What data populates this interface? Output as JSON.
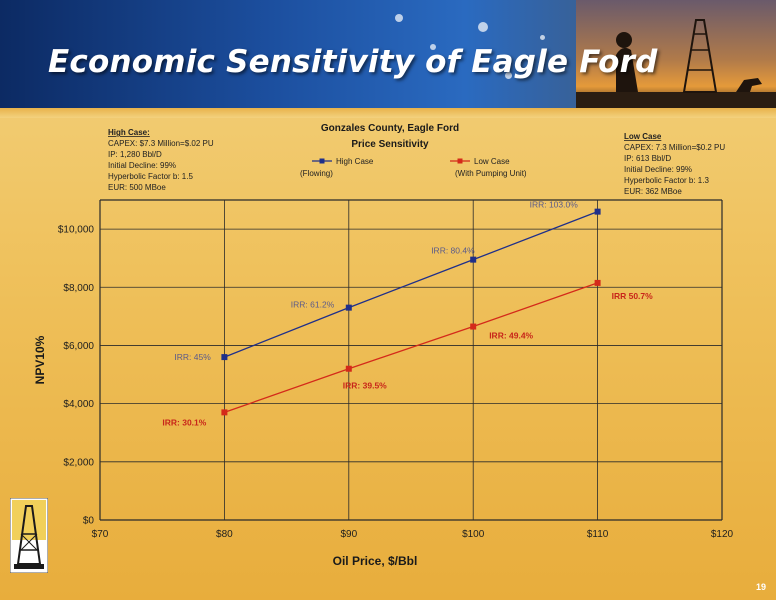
{
  "slide": {
    "title": "Economic Sensitivity of Eagle Ford",
    "page_number": "19"
  },
  "colors": {
    "high_case": "#1f2f8a",
    "low_case": "#d42a1a",
    "grid": "#2a2a2a"
  },
  "high_case_box": {
    "heading": "High Case:",
    "lines": [
      "CAPEX: $7.3 Million=$.02 PU",
      "IP: 1,280 Bbl/D",
      "Initial Decline: 99%",
      "Hyperbolic Factor b: 1.5",
      "EUR: 500 MBoe"
    ]
  },
  "low_case_box": {
    "heading": "Low Case",
    "lines": [
      "CAPEX: 7.3 Million=$0.2 PU",
      "IP: 613 Bbl/D",
      "Initial Decline: 99%",
      "Hyperbolic Factor b: 1.3",
      "EUR: 362 MBoe"
    ]
  },
  "chart_data": {
    "type": "line",
    "title": "Gonzales County, Eagle Ford",
    "subtitle": "Price Sensitivity",
    "xlabel": "Oil Price,  $/Bbl",
    "ylabel": "NPV10%",
    "xlim": [
      70,
      120
    ],
    "ylim": [
      0,
      11000
    ],
    "x_ticks": [
      70,
      80,
      90,
      100,
      110,
      120
    ],
    "x_tick_labels": [
      "$70",
      "$80",
      "$90",
      "$100",
      "$110",
      "$120"
    ],
    "y_ticks": [
      0,
      2000,
      4000,
      6000,
      8000,
      10000
    ],
    "y_tick_labels": [
      "$0",
      "$2,000",
      "$4,000",
      "$6,000",
      "$8,000",
      "$10,000"
    ],
    "grid": true,
    "legend_position": "top",
    "series": [
      {
        "name": "High Case",
        "legend_sub": "(Flowing)",
        "x": [
          80,
          90,
          100,
          110
        ],
        "y": [
          5600,
          7300,
          8950,
          10600
        ],
        "labels": [
          "IRR: 45%",
          "IRR: 61.2%",
          "IRR: 80.4%",
          "IRR: 103.0%"
        ]
      },
      {
        "name": "Low Case",
        "legend_sub": "(With Pumping Unit)",
        "x": [
          80,
          90,
          100,
          110
        ],
        "y": [
          3700,
          5200,
          6650,
          8150
        ],
        "labels": [
          "IRR: 30.1%",
          "IRR: 39.5%",
          "IRR: 49.4%",
          "IRR 50.7%"
        ]
      }
    ]
  }
}
